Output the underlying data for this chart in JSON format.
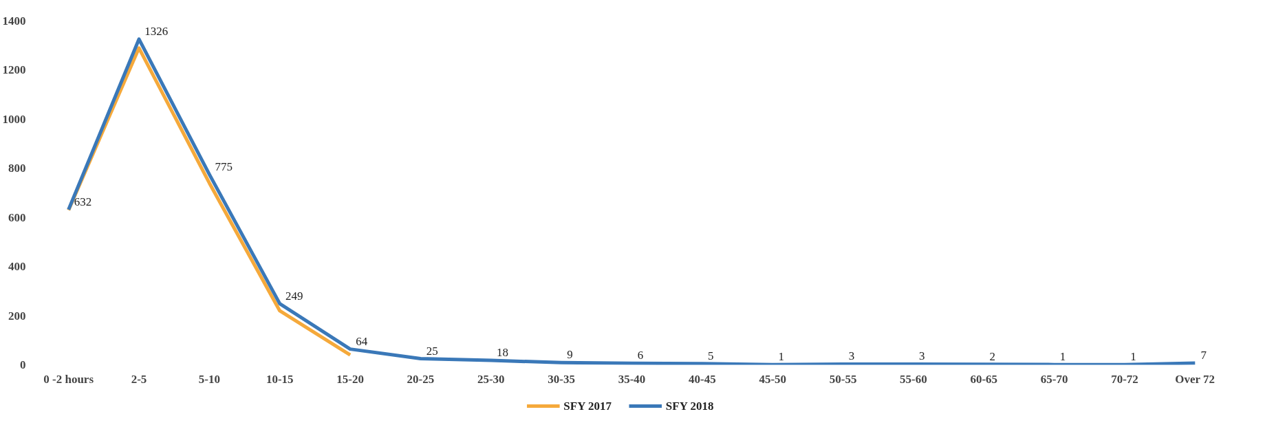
{
  "chart_data": {
    "type": "line",
    "categories": [
      "0 -2 hours",
      "2-5",
      "5-10",
      "10-15",
      "15-20",
      "20-25",
      "25-30",
      "30-35",
      "35-40",
      "40-45",
      "45-50",
      "50-55",
      "55-60",
      "60-65",
      "65-70",
      "70-72",
      "Over 72"
    ],
    "series": [
      {
        "name": "SFY 2017",
        "color": "#f5a93b",
        "values": [
          630,
          1290,
          740,
          220,
          40,
          null,
          null,
          null,
          null,
          null,
          null,
          null,
          null,
          null,
          null,
          null,
          null
        ]
      },
      {
        "name": "SFY 2018",
        "color": "#3a78b8",
        "values": [
          632,
          1326,
          775,
          249,
          64,
          25,
          18,
          9,
          6,
          5,
          1,
          3,
          3,
          2,
          1,
          1,
          7
        ],
        "value_labels": [
          "632",
          "1326",
          "775",
          "249",
          "64",
          "25",
          "18",
          "9",
          "6",
          "5",
          "1",
          "3",
          "3",
          "2",
          "1",
          "1",
          "7"
        ]
      }
    ],
    "ylim": [
      0,
      1400
    ],
    "yticks": [
      0,
      200,
      400,
      600,
      800,
      1000,
      1200,
      1400
    ],
    "legend": "bottom",
    "grid": false,
    "marker": "none",
    "line_style": "solid"
  }
}
